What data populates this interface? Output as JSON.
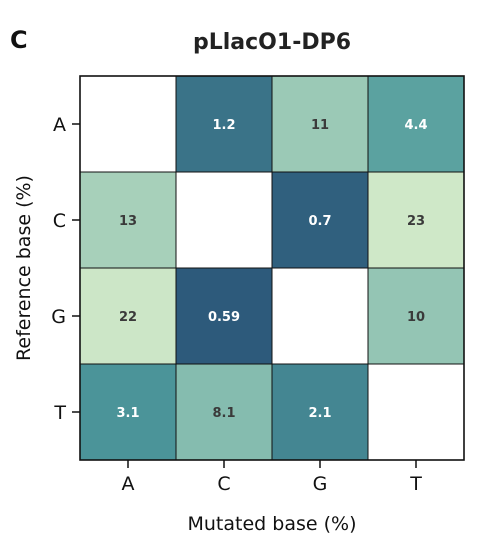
{
  "panel_label": "C",
  "chart_data": {
    "type": "heatmap",
    "title": "pLlacO1-DP6",
    "xlabel": "Mutated base (%)",
    "ylabel": "Reference base (%)",
    "x_categories": [
      "A",
      "C",
      "G",
      "T"
    ],
    "y_categories": [
      "A",
      "C",
      "G",
      "T"
    ],
    "values": [
      [
        null,
        1.2,
        11,
        4.4
      ],
      [
        13,
        null,
        0.7,
        23
      ],
      [
        22,
        0.59,
        null,
        10
      ],
      [
        3.1,
        8.1,
        2.1,
        null
      ]
    ],
    "labels": [
      [
        "",
        "1.2",
        "11",
        "4.4"
      ],
      [
        "13",
        "",
        "0.7",
        "23"
      ],
      [
        "22",
        "0.59",
        "",
        "10"
      ],
      [
        "3.1",
        "8.1",
        "2.1",
        ""
      ]
    ],
    "colors": {
      "empty": "#ffffff",
      "scale_low": "#2d5a7b",
      "scale_mid": "#4e9a9c",
      "scale_high": "#cfe8c8",
      "dark_text": "#3a3a3a",
      "light_text": "#ffffff"
    }
  }
}
